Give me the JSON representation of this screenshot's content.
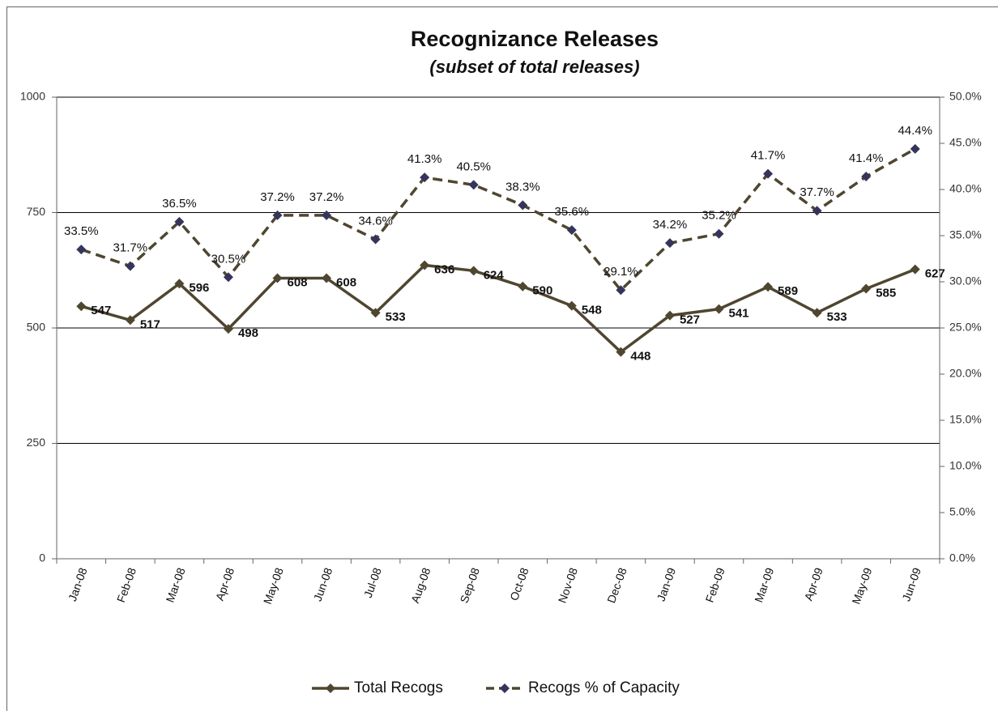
{
  "chart_data": {
    "type": "line",
    "title": "Recognizance Releases",
    "subtitle": "(subset of total releases)",
    "categories": [
      "Jan-08",
      "Feb-08",
      "Mar-08",
      "Apr-08",
      "May-08",
      "Jun-08",
      "Jul-08",
      "Aug-08",
      "Sep-08",
      "Oct-08",
      "Nov-08",
      "Dec-08",
      "Jan-09",
      "Feb-09",
      "Mar-09",
      "Apr-09",
      "May-09",
      "Jun-09"
    ],
    "series": [
      {
        "name": "Total Recogs",
        "color": "#4f4630",
        "marker_color": "#4f4630",
        "dash": false,
        "values": [
          547,
          517,
          596,
          498,
          608,
          608,
          533,
          636,
          624,
          590,
          548,
          448,
          527,
          541,
          589,
          533,
          585,
          627
        ]
      },
      {
        "name": "Recogs % of Capacity",
        "color": "#4f4630",
        "marker_color": "#35345a",
        "dash": true,
        "axis": "y2",
        "values": [
          33.5,
          31.7,
          36.5,
          30.5,
          37.2,
          37.2,
          34.6,
          41.3,
          40.5,
          38.3,
          35.6,
          29.1,
          34.2,
          35.2,
          41.7,
          37.7,
          41.4,
          44.4
        ],
        "value_labels": [
          "33.5%",
          "31.7%",
          "36.5%",
          "30.5%",
          "37.2%",
          "37.2%",
          "34.6%",
          "41.3%",
          "40.5%",
          "38.3%",
          "35.6%",
          "29.1%",
          "34.2%",
          "35.2%",
          "41.7%",
          "37.7%",
          "41.4%",
          "44.4%"
        ]
      }
    ],
    "ylim": [
      0,
      1000
    ],
    "yticks": [
      0,
      250,
      500,
      750,
      1000
    ],
    "y2lim": [
      0,
      50
    ],
    "y2ticks": [
      {
        "value": 0,
        "label": "0.0%"
      },
      {
        "value": 5,
        "label": "5.0%"
      },
      {
        "value": 10,
        "label": "10.0%"
      },
      {
        "value": 15,
        "label": "15.0%"
      },
      {
        "value": 20,
        "label": "20.0%"
      },
      {
        "value": 25,
        "label": "25.0%"
      },
      {
        "value": 30,
        "label": "30.0%"
      },
      {
        "value": 35,
        "label": "35.0%"
      },
      {
        "value": 40,
        "label": "40.0%"
      },
      {
        "value": 45,
        "label": "45.0%"
      },
      {
        "value": 50,
        "label": "50.0%"
      }
    ],
    "grid": true,
    "legend": "bottom"
  }
}
